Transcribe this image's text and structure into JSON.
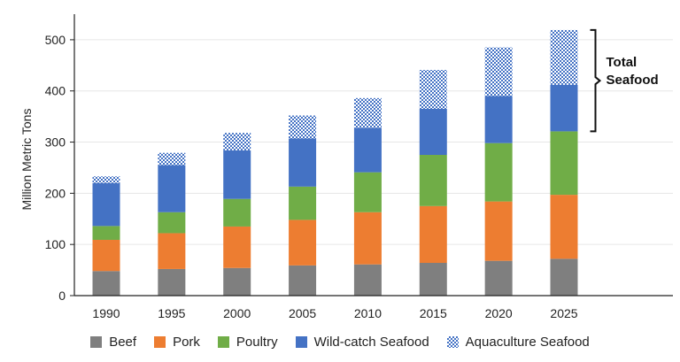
{
  "chart_data": {
    "type": "bar",
    "stacked": true,
    "categories": [
      "1990",
      "1995",
      "2000",
      "2005",
      "2010",
      "2015",
      "2020",
      "2025"
    ],
    "series": [
      {
        "name": "Beef",
        "color": "#7f7f7f",
        "pattern": "solid",
        "values": [
          48,
          52,
          54,
          59,
          61,
          64,
          68,
          72
        ]
      },
      {
        "name": "Pork",
        "color": "#ed7d31",
        "pattern": "solid",
        "values": [
          61,
          70,
          81,
          89,
          102,
          111,
          116,
          125
        ]
      },
      {
        "name": "Poultry",
        "color": "#70ad47",
        "pattern": "solid",
        "values": [
          27,
          41,
          54,
          65,
          78,
          100,
          114,
          124
        ]
      },
      {
        "name": "Wild-catch Seafood",
        "color": "#4472c4",
        "pattern": "solid",
        "values": [
          84,
          92,
          95,
          94,
          87,
          90,
          92,
          91
        ]
      },
      {
        "name": "Aquaculture Seafood",
        "color": "#4472c4",
        "pattern": "checker",
        "values": [
          13,
          24,
          34,
          45,
          58,
          76,
          95,
          107
        ]
      }
    ],
    "ylabel": "Million Metric Tons",
    "xlabel": "",
    "ylim": [
      0,
      550
    ],
    "yticks": [
      0,
      100,
      200,
      300,
      400,
      500
    ],
    "grid": true,
    "legend_position": "bottom",
    "annotation": {
      "text_lines": [
        "Total",
        "Seafood"
      ],
      "spans_series": [
        "Wild-catch Seafood",
        "Aquaculture Seafood"
      ],
      "category": "2025"
    }
  }
}
